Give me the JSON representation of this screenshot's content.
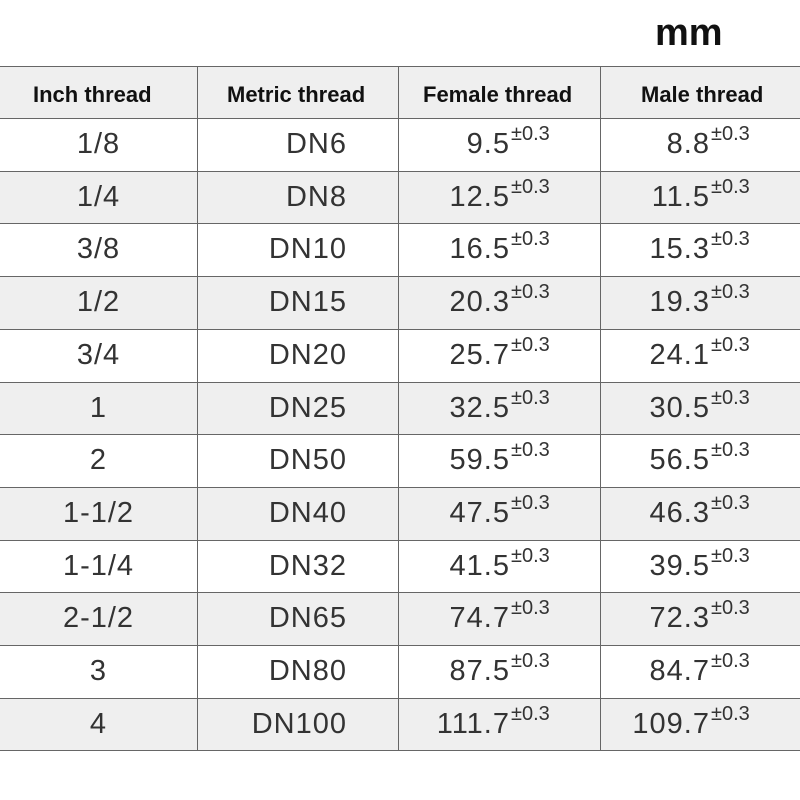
{
  "unit": "mm",
  "table": {
    "headers": [
      "Inch thread",
      "Metric thread",
      "Female thread",
      "Male thread"
    ],
    "rows": [
      {
        "inch": "1/8",
        "metric": "DN6",
        "female": {
          "value": "9.5",
          "tol": "±0.3"
        },
        "male": {
          "value": "8.8",
          "tol": "±0.3"
        }
      },
      {
        "inch": "1/4",
        "metric": "DN8",
        "female": {
          "value": "12.5",
          "tol": "±0.3"
        },
        "male": {
          "value": "11.5",
          "tol": "±0.3"
        }
      },
      {
        "inch": "3/8",
        "metric": "DN10",
        "female": {
          "value": "16.5",
          "tol": "±0.3"
        },
        "male": {
          "value": "15.3",
          "tol": "±0.3"
        }
      },
      {
        "inch": "1/2",
        "metric": "DN15",
        "female": {
          "value": "20.3",
          "tol": "±0.3"
        },
        "male": {
          "value": "19.3",
          "tol": "±0.3"
        }
      },
      {
        "inch": "3/4",
        "metric": "DN20",
        "female": {
          "value": "25.7",
          "tol": "±0.3"
        },
        "male": {
          "value": "24.1",
          "tol": "±0.3"
        }
      },
      {
        "inch": "1",
        "metric": "DN25",
        "female": {
          "value": "32.5",
          "tol": "±0.3"
        },
        "male": {
          "value": "30.5",
          "tol": "±0.3"
        }
      },
      {
        "inch": "2",
        "metric": "DN50",
        "female": {
          "value": "59.5",
          "tol": "±0.3"
        },
        "male": {
          "value": "56.5",
          "tol": "±0.3"
        }
      },
      {
        "inch": "1-1/2",
        "metric": "DN40",
        "female": {
          "value": "47.5",
          "tol": "±0.3"
        },
        "male": {
          "value": "46.3",
          "tol": "±0.3"
        }
      },
      {
        "inch": "1-1/4",
        "metric": "DN32",
        "female": {
          "value": "41.5",
          "tol": "±0.3"
        },
        "male": {
          "value": "39.5",
          "tol": "±0.3"
        }
      },
      {
        "inch": "2-1/2",
        "metric": "DN65",
        "female": {
          "value": "74.7",
          "tol": "±0.3"
        },
        "male": {
          "value": "72.3",
          "tol": "±0.3"
        }
      },
      {
        "inch": "3",
        "metric": "DN80",
        "female": {
          "value": "87.5",
          "tol": "±0.3"
        },
        "male": {
          "value": "84.7",
          "tol": "±0.3"
        }
      },
      {
        "inch": "4",
        "metric": "DN100",
        "female": {
          "value": "111.7",
          "tol": "±0.3"
        },
        "male": {
          "value": "109.7",
          "tol": "±0.3"
        }
      }
    ]
  }
}
